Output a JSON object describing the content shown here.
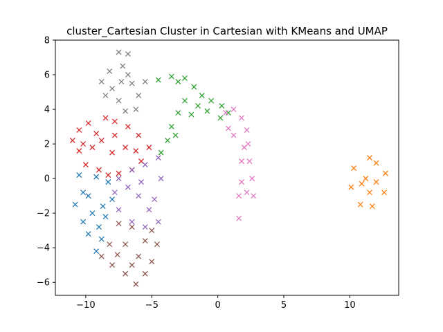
{
  "chart_data": {
    "type": "scatter",
    "title": "cluster_Cartesian Cluster in Cartesian with KMeans and UMAP",
    "xlabel": "",
    "ylabel": "",
    "xlim": [
      -12.3,
      13.7
    ],
    "ylim": [
      -6.75,
      8.0
    ],
    "xticks": [
      -10,
      -5,
      0,
      5,
      10
    ],
    "yticks": [
      -6,
      -4,
      -2,
      0,
      2,
      4,
      6,
      8
    ],
    "grid": false,
    "legend": "none",
    "marker": "x",
    "series": [
      {
        "color": "#1f77b4",
        "values": [
          [
            -10.5,
            0.2
          ],
          [
            -10.8,
            -1.5
          ],
          [
            -10.2,
            -2.5
          ],
          [
            -9.8,
            -3.2
          ],
          [
            -9.2,
            -4.2
          ],
          [
            -8.8,
            -3.5
          ],
          [
            -8.5,
            -2.2
          ],
          [
            -8.0,
            -1.2
          ],
          [
            -8.3,
            -0.2
          ],
          [
            -9.2,
            0.1
          ],
          [
            -9.8,
            -1.0
          ],
          [
            -9.5,
            -2.0
          ],
          [
            -9.0,
            -2.8
          ],
          [
            -10.2,
            -0.8
          ],
          [
            -8.7,
            -1.6
          ]
        ]
      },
      {
        "color": "#ff7f0e",
        "values": [
          [
            11.5,
            1.2
          ],
          [
            10.3,
            0.6
          ],
          [
            10.1,
            -0.5
          ],
          [
            10.8,
            -1.5
          ],
          [
            11.7,
            -1.6
          ],
          [
            12.6,
            -0.8
          ],
          [
            12.7,
            0.3
          ],
          [
            12.0,
            0.9
          ],
          [
            11.2,
            0.0
          ],
          [
            11.5,
            -0.8
          ],
          [
            10.9,
            -0.3
          ],
          [
            12.0,
            -0.2
          ]
        ]
      },
      {
        "color": "#2ca02c",
        "values": [
          [
            -4.5,
            5.7
          ],
          [
            -3.5,
            5.9
          ],
          [
            -2.5,
            5.8
          ],
          [
            -1.8,
            5.3
          ],
          [
            -1.2,
            4.8
          ],
          [
            -2.5,
            4.5
          ],
          [
            -3.0,
            3.8
          ],
          [
            -3.5,
            3.0
          ],
          [
            -3.8,
            2.2
          ],
          [
            -4.3,
            1.5
          ],
          [
            -1.5,
            4.2
          ],
          [
            -0.5,
            4.5
          ],
          [
            0.3,
            4.2
          ],
          [
            0.8,
            3.8
          ],
          [
            0.2,
            3.5
          ],
          [
            -0.8,
            3.9
          ],
          [
            -2.0,
            3.7
          ],
          [
            -3.2,
            2.5
          ],
          [
            -3.0,
            5.6
          ]
        ]
      },
      {
        "color": "#d62728",
        "values": [
          [
            -11.0,
            2.2
          ],
          [
            -10.5,
            2.8
          ],
          [
            -9.8,
            3.2
          ],
          [
            -9.2,
            2.6
          ],
          [
            -8.5,
            3.5
          ],
          [
            -7.8,
            3.3
          ],
          [
            -6.8,
            3.0
          ],
          [
            -6.0,
            2.5
          ],
          [
            -5.2,
            1.8
          ],
          [
            -5.8,
            1.0
          ],
          [
            -6.5,
            0.5
          ],
          [
            -7.5,
            0.3
          ],
          [
            -8.3,
            0.2
          ],
          [
            -9.0,
            0.5
          ],
          [
            -10.0,
            0.8
          ],
          [
            -10.5,
            1.6
          ],
          [
            -9.5,
            1.8
          ],
          [
            -8.0,
            1.5
          ],
          [
            -7.0,
            1.8
          ],
          [
            -8.8,
            2.2
          ],
          [
            -6.2,
            1.6
          ],
          [
            -7.8,
            2.5
          ],
          [
            -10.2,
            2.0
          ]
        ]
      },
      {
        "color": "#9467bd",
        "values": [
          [
            -7.5,
            0.0
          ],
          [
            -6.5,
            0.5
          ],
          [
            -5.5,
            0.8
          ],
          [
            -4.5,
            1.2
          ],
          [
            -4.3,
            0.0
          ],
          [
            -4.8,
            -1.2
          ],
          [
            -4.5,
            -2.5
          ],
          [
            -5.5,
            -2.8
          ],
          [
            -6.5,
            -2.5
          ],
          [
            -7.5,
            -1.8
          ],
          [
            -7.8,
            -0.8
          ],
          [
            -6.0,
            -1.0
          ],
          [
            -5.2,
            -1.8
          ],
          [
            -6.8,
            -0.5
          ],
          [
            -5.8,
            -0.2
          ]
        ]
      },
      {
        "color": "#8c564b",
        "values": [
          [
            -7.5,
            -2.6
          ],
          [
            -6.5,
            -2.8
          ],
          [
            -5.0,
            -3.0
          ],
          [
            -4.6,
            -3.8
          ],
          [
            -5.0,
            -4.8
          ],
          [
            -5.5,
            -5.5
          ],
          [
            -6.2,
            -6.1
          ],
          [
            -7.0,
            -5.5
          ],
          [
            -8.0,
            -5.0
          ],
          [
            -8.8,
            -4.5
          ],
          [
            -8.2,
            -3.8
          ],
          [
            -7.0,
            -3.8
          ],
          [
            -6.0,
            -4.5
          ],
          [
            -6.5,
            -5.0
          ],
          [
            -5.5,
            -3.6
          ],
          [
            -7.6,
            -4.4
          ]
        ]
      },
      {
        "color": "#e377c2",
        "values": [
          [
            0.6,
            3.8
          ],
          [
            1.2,
            4.0
          ],
          [
            1.8,
            3.5
          ],
          [
            2.2,
            2.8
          ],
          [
            2.3,
            2.0
          ],
          [
            2.4,
            1.0
          ],
          [
            2.6,
            0.0
          ],
          [
            2.7,
            -1.0
          ],
          [
            2.2,
            -0.8
          ],
          [
            1.8,
            -0.2
          ],
          [
            1.6,
            -1.0
          ],
          [
            1.6,
            -2.3
          ],
          [
            1.8,
            1.0
          ],
          [
            1.2,
            2.5
          ],
          [
            0.8,
            2.9
          ],
          [
            2.0,
            1.8
          ]
        ]
      },
      {
        "color": "#7f7f7f",
        "values": [
          [
            -7.5,
            7.3
          ],
          [
            -6.8,
            7.2
          ],
          [
            -7.2,
            6.5
          ],
          [
            -8.2,
            6.2
          ],
          [
            -8.8,
            5.6
          ],
          [
            -8.0,
            5.2
          ],
          [
            -7.5,
            4.5
          ],
          [
            -7.0,
            3.9
          ],
          [
            -6.2,
            4.0
          ],
          [
            -6.0,
            4.8
          ],
          [
            -6.5,
            5.5
          ],
          [
            -5.5,
            5.6
          ],
          [
            -6.8,
            6.0
          ],
          [
            -8.5,
            4.8
          ],
          [
            -7.3,
            5.6
          ]
        ]
      }
    ]
  }
}
